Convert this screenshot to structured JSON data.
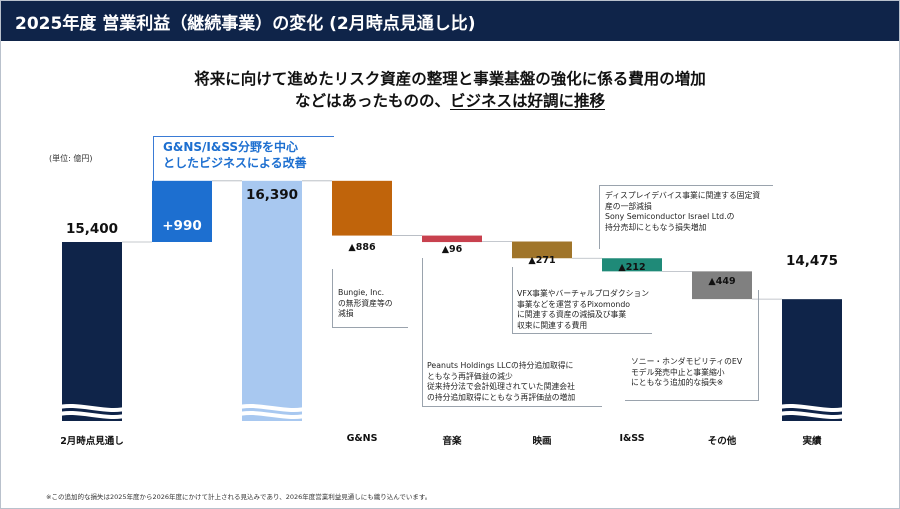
{
  "header": {
    "title": "2025年度 営業利益（継続事業）の変化 (2月時点見通し比)"
  },
  "headline": {
    "line1": "将来に向けて進めたリスク資産の整理と事業基盤の強化に係る費用の増加",
    "line2_prefix": "などはあったものの、",
    "line2_emphasis": "ビジネスは好調に推移"
  },
  "unit_label": "(単位: 億円)",
  "callout": {
    "line1": "G&NS/I&SS分野を中心",
    "line2": "としたビジネスによる改善"
  },
  "colors": {
    "navy": "#0f2449",
    "increase": "#1d6fd0",
    "light_blue": "#a8c8f0",
    "gns": "#c0640b",
    "music": "#c8414e",
    "movie": "#a0752a",
    "iss": "#1f8a78",
    "other": "#808080"
  },
  "chart_data": {
    "type": "bar",
    "subtype": "waterfall",
    "unit": "億円",
    "axis_break": true,
    "categories": [
      "2月時点見通し",
      "",
      "",
      "G&NS",
      "音楽",
      "映画",
      "I&SS",
      "その他",
      "実績"
    ],
    "steps": [
      {
        "category": "2月時点見通し",
        "kind": "total",
        "value": 15400,
        "label": "15,400"
      },
      {
        "category": "",
        "kind": "increase",
        "value": 990,
        "label": "+990"
      },
      {
        "category": "",
        "kind": "subtotal",
        "value": 16390,
        "label": "16,390"
      },
      {
        "category": "G&NS",
        "kind": "decrease",
        "value": -886,
        "label": "▲886"
      },
      {
        "category": "音楽",
        "kind": "decrease",
        "value": -96,
        "label": "▲96"
      },
      {
        "category": "映画",
        "kind": "decrease",
        "value": -271,
        "label": "▲271"
      },
      {
        "category": "I&SS",
        "kind": "decrease",
        "value": -212,
        "label": "▲212"
      },
      {
        "category": "その他",
        "kind": "decrease",
        "value": -449,
        "label": "▲449"
      },
      {
        "category": "実績",
        "kind": "total",
        "value": 14475,
        "label": "14,475"
      }
    ]
  },
  "notes": {
    "gns": [
      "Bungie, Inc.",
      "の無形資産等の",
      "減損"
    ],
    "music": [
      "Peanuts Holdings LLCの持分追加取得に",
      "ともなう再評価益の減少",
      "従来持分法で会計処理されていた関連会社",
      "の持分追加取得にともなう再評価益の増加"
    ],
    "movie": [
      "VFX事業やバーチャルプロダクション",
      "事業などを運営するPixomondo",
      "に関連する資産の減損及び事業",
      "収束に関連する費用"
    ],
    "iss": [
      "ディスプレイデバイス事業に関連する固定資",
      "産の一部減損",
      "Sony Semiconductor Israel Ltd.の",
      "持分売却にともなう損失増加"
    ],
    "other": [
      "ソニー・ホンダモビリティのEV",
      "モデル発売中止と事業縮小",
      "にともなう追加的な損失※"
    ]
  },
  "footnote": "※この追加的な損失は2025年度から2026年度にかけて計上される見込みであり、2026年度営業利益見通しにも織り込んでいます。"
}
